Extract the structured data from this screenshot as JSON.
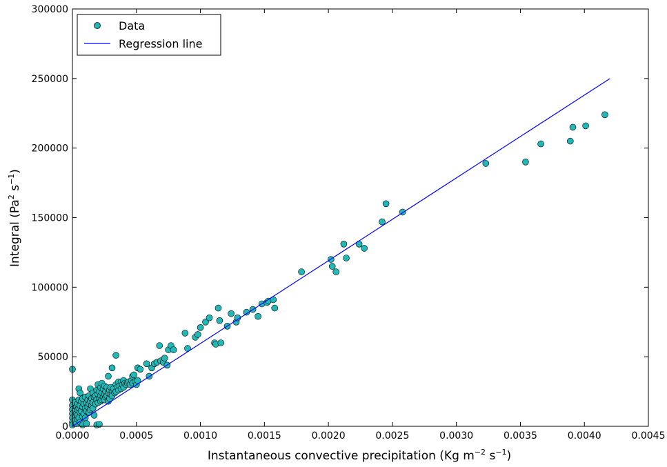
{
  "chart_data": {
    "type": "scatter",
    "xlabel": "Instantaneous convective precipitation (Kg m",
    "xlabel_sup1": "−2",
    "xlabel_mid": " s",
    "xlabel_sup2": "−1",
    "xlabel_end": ")",
    "ylabel": "Integral (Pa",
    "ylabel_sup1": "2",
    "ylabel_mid": " s",
    "ylabel_sup2": "−1",
    "ylabel_end": ")",
    "xlim": [
      0,
      0.0045
    ],
    "ylim": [
      0,
      300000
    ],
    "xticks": [
      "0.0000",
      "0.0005",
      "0.0010",
      "0.0015",
      "0.0020",
      "0.0025",
      "0.0030",
      "0.0035",
      "0.0040",
      "0.0045"
    ],
    "yticks": [
      "0",
      "50000",
      "100000",
      "150000",
      "200000",
      "250000",
      "300000"
    ],
    "legend": {
      "placement": "top-left",
      "data_label": "Data",
      "line_label": "Regression line"
    },
    "colors": {
      "points": "#22b8b8",
      "point_edge": "#000000",
      "line": "#0000ff"
    },
    "grid": false,
    "regression_line": {
      "x": [
        0,
        0.0042
      ],
      "y": [
        0,
        250000
      ]
    },
    "series": [
      {
        "name": "Data",
        "points": [
          [
            0.0,
            41000
          ],
          [
            0.0,
            19000
          ],
          [
            0.0,
            15000
          ],
          [
            0.0,
            12000
          ],
          [
            0.0,
            9000
          ],
          [
            0.0,
            6000
          ],
          [
            0.0,
            3000
          ],
          [
            0.0,
            1000
          ],
          [
            2e-05,
            17000
          ],
          [
            2e-05,
            11000
          ],
          [
            2e-05,
            7000
          ],
          [
            2e-05,
            4000
          ],
          [
            3e-05,
            14000
          ],
          [
            3e-05,
            9000
          ],
          [
            3e-05,
            2000
          ],
          [
            4e-05,
            16000
          ],
          [
            4e-05,
            12000
          ],
          [
            4e-05,
            8000
          ],
          [
            4e-05,
            5000
          ],
          [
            5e-05,
            27000
          ],
          [
            5e-05,
            19000
          ],
          [
            5e-05,
            13000
          ],
          [
            5e-05,
            6000
          ],
          [
            6e-05,
            24000
          ],
          [
            6e-05,
            15000
          ],
          [
            6e-05,
            10000
          ],
          [
            6e-05,
            3000
          ],
          [
            7e-05,
            18000
          ],
          [
            7e-05,
            11000
          ],
          [
            8e-05,
            20000
          ],
          [
            8e-05,
            14000
          ],
          [
            8e-05,
            7000
          ],
          [
            8e-05,
            1000
          ],
          [
            9e-05,
            16000
          ],
          [
            9e-05,
            9000
          ],
          [
            0.0001,
            21000
          ],
          [
            0.0001,
            13000
          ],
          [
            0.0001,
            6000
          ],
          [
            0.00011,
            17000
          ],
          [
            0.00011,
            11000
          ],
          [
            0.00011,
            2000
          ],
          [
            0.00012,
            19000
          ],
          [
            0.00012,
            14000
          ],
          [
            0.00013,
            22000
          ],
          [
            0.00013,
            16000
          ],
          [
            0.00013,
            10000
          ],
          [
            0.00014,
            27000
          ],
          [
            0.00014,
            18000
          ],
          [
            0.00014,
            12000
          ],
          [
            0.00015,
            20000
          ],
          [
            0.00015,
            15000
          ],
          [
            0.00016,
            24000
          ],
          [
            0.00016,
            17000
          ],
          [
            0.00016,
            13000
          ],
          [
            0.00017,
            21000
          ],
          [
            0.00017,
            8000
          ],
          [
            0.00018,
            22000
          ],
          [
            0.00018,
            16000
          ],
          [
            0.00019,
            26000
          ],
          [
            0.00019,
            19000
          ],
          [
            0.00019,
            1000
          ],
          [
            0.0002,
            30000
          ],
          [
            0.0002,
            23000
          ],
          [
            0.0002,
            17000
          ],
          [
            0.00021,
            25000
          ],
          [
            0.00021,
            20000
          ],
          [
            0.00021,
            1500
          ],
          [
            0.00022,
            28000
          ],
          [
            0.00022,
            22000
          ],
          [
            0.00022,
            18000
          ],
          [
            0.00023,
            31000
          ],
          [
            0.00023,
            24000
          ],
          [
            0.00023,
            19000
          ],
          [
            0.00024,
            27000
          ],
          [
            0.00024,
            21000
          ],
          [
            0.00025,
            29000
          ],
          [
            0.00025,
            23000
          ],
          [
            0.00025,
            19000
          ],
          [
            0.00026,
            25000
          ],
          [
            0.00026,
            21000
          ],
          [
            0.00027,
            28000
          ],
          [
            0.00027,
            22000
          ],
          [
            0.00028,
            36000
          ],
          [
            0.00028,
            24000
          ],
          [
            0.00028,
            18000
          ],
          [
            0.00029,
            26000
          ],
          [
            0.00029,
            20000
          ],
          [
            0.0003,
            28000
          ],
          [
            0.0003,
            23000
          ],
          [
            0.00031,
            42000
          ],
          [
            0.00031,
            25000
          ],
          [
            0.00031,
            22000
          ],
          [
            0.00032,
            27000
          ],
          [
            0.00033,
            24000
          ],
          [
            0.00034,
            51000
          ],
          [
            0.00034,
            30000
          ],
          [
            0.00034,
            25000
          ],
          [
            0.00035,
            28000
          ],
          [
            0.00036,
            32000
          ],
          [
            0.00036,
            26000
          ],
          [
            0.00037,
            29000
          ],
          [
            0.00038,
            32000
          ],
          [
            0.00038,
            27000
          ],
          [
            0.00039,
            30000
          ],
          [
            0.0004,
            33000
          ],
          [
            0.0004,
            28000
          ],
          [
            0.00041,
            31000
          ],
          [
            0.00042,
            30000
          ],
          [
            0.00043,
            31000
          ],
          [
            0.00044,
            32000
          ],
          [
            0.00045,
            30000
          ],
          [
            0.00046,
            33000
          ],
          [
            0.00047,
            36000
          ],
          [
            0.00047,
            31000
          ],
          [
            0.00048,
            37000
          ],
          [
            0.00049,
            32000
          ],
          [
            0.0005,
            30000
          ],
          [
            0.00051,
            42000
          ],
          [
            0.00051,
            33000
          ],
          [
            0.00053,
            41000
          ],
          [
            0.00058,
            45000
          ],
          [
            0.0006,
            36000
          ],
          [
            0.00062,
            42000
          ],
          [
            0.00064,
            45000
          ],
          [
            0.00066,
            46000
          ],
          [
            0.00068,
            58000
          ],
          [
            0.00069,
            47000
          ],
          [
            0.00071,
            46000
          ],
          [
            0.00072,
            49000
          ],
          [
            0.00074,
            44000
          ],
          [
            0.00075,
            55000
          ],
          [
            0.00077,
            58000
          ],
          [
            0.00079,
            55000
          ],
          [
            0.00088,
            67000
          ],
          [
            0.0009,
            56000
          ],
          [
            0.00096,
            64000
          ],
          [
            0.00098,
            66000
          ],
          [
            0.001,
            71000
          ],
          [
            0.00104,
            75000
          ],
          [
            0.00107,
            78000
          ],
          [
            0.00111,
            60000
          ],
          [
            0.00112,
            59000
          ],
          [
            0.00114,
            85000
          ],
          [
            0.00115,
            76000
          ],
          [
            0.00116,
            60000
          ],
          [
            0.00121,
            72000
          ],
          [
            0.00124,
            81000
          ],
          [
            0.00128,
            75000
          ],
          [
            0.00129,
            78000
          ],
          [
            0.00136,
            82000
          ],
          [
            0.00141,
            84000
          ],
          [
            0.00145,
            79000
          ],
          [
            0.00148,
            88000
          ],
          [
            0.00152,
            89000
          ],
          [
            0.00153,
            90000
          ],
          [
            0.00157,
            91000
          ],
          [
            0.00158,
            85000
          ],
          [
            0.00179,
            111000
          ],
          [
            0.00202,
            120000
          ],
          [
            0.00203,
            115000
          ],
          [
            0.00206,
            111000
          ],
          [
            0.00212,
            131000
          ],
          [
            0.00214,
            121000
          ],
          [
            0.00224,
            131000
          ],
          [
            0.00228,
            128000
          ],
          [
            0.00242,
            147000
          ],
          [
            0.00245,
            160000
          ],
          [
            0.00258,
            154000
          ],
          [
            0.00323,
            189000
          ],
          [
            0.00354,
            190000
          ],
          [
            0.00366,
            203000
          ],
          [
            0.00389,
            205000
          ],
          [
            0.00391,
            215000
          ],
          [
            0.00401,
            216000
          ],
          [
            0.00416,
            224000
          ]
        ]
      }
    ]
  }
}
